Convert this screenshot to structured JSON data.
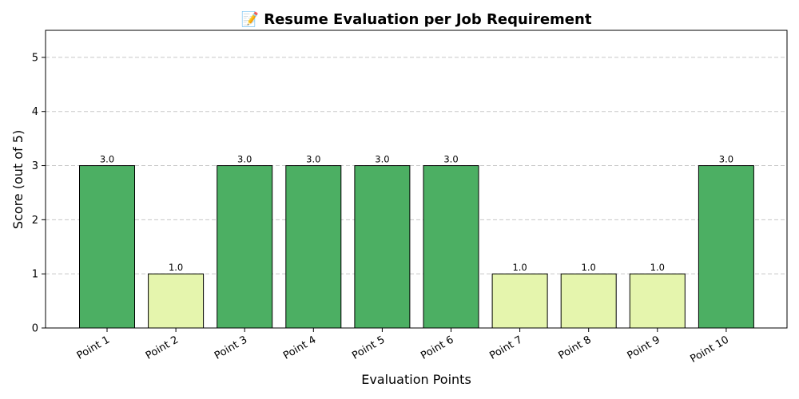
{
  "chart_data": {
    "type": "bar",
    "title": "📝 Resume Evaluation per Job Requirement",
    "xlabel": "Evaluation Points",
    "ylabel": "Score (out of 5)",
    "categories": [
      "Point 1",
      "Point 2",
      "Point 3",
      "Point 4",
      "Point 5",
      "Point 6",
      "Point 7",
      "Point 8",
      "Point 9",
      "Point 10"
    ],
    "values": [
      3.0,
      1.0,
      3.0,
      3.0,
      3.0,
      3.0,
      1.0,
      1.0,
      1.0,
      3.0
    ],
    "data_labels": [
      "3.0",
      "1.0",
      "3.0",
      "3.0",
      "3.0",
      "3.0",
      "1.0",
      "1.0",
      "1.0",
      "3.0"
    ],
    "ylim": [
      0,
      5.5
    ],
    "yticks": [
      "0",
      "1",
      "2",
      "3",
      "4",
      "5"
    ],
    "grid": "y-dashed",
    "colors": {
      "high": "#4caf63",
      "low": "#e5f5ad"
    }
  }
}
